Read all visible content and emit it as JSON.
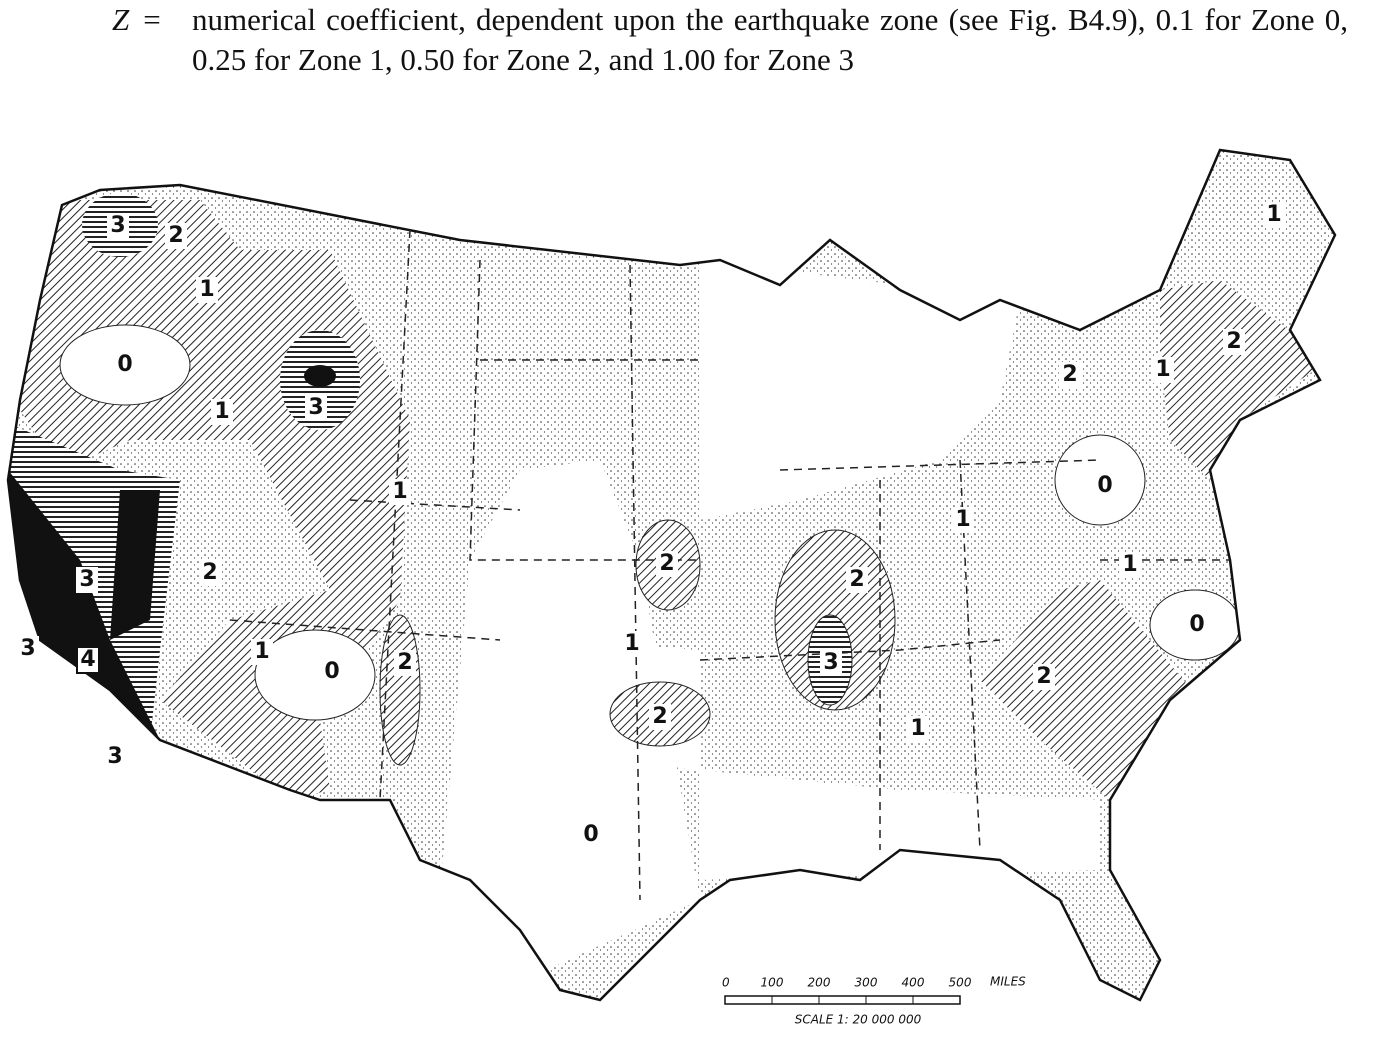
{
  "definition": {
    "symbol": "Z",
    "equals": "=",
    "text": "numerical coefficient, dependent upon the earthquake zone (see Fig. B4.9), 0.1 for Zone 0, 0.25 for Zone 1, 0.50 for Zone 2, and 1.00 for Zone 3"
  },
  "map": {
    "zone_labels": [
      "3",
      "2",
      "1",
      "0",
      "1",
      "3",
      "1",
      "3",
      "2",
      "3",
      "4",
      "3",
      "1",
      "0",
      "2",
      "2",
      "1",
      "2",
      "0",
      "2",
      "3",
      "1",
      "1",
      "2",
      "1",
      "0",
      "0",
      "1",
      "2",
      "2",
      "1"
    ]
  },
  "scale": {
    "ticks": [
      "0",
      "100",
      "200",
      "300",
      "400",
      "500"
    ],
    "unit": "MILES",
    "ratio": "SCALE 1: 20 000 000"
  }
}
